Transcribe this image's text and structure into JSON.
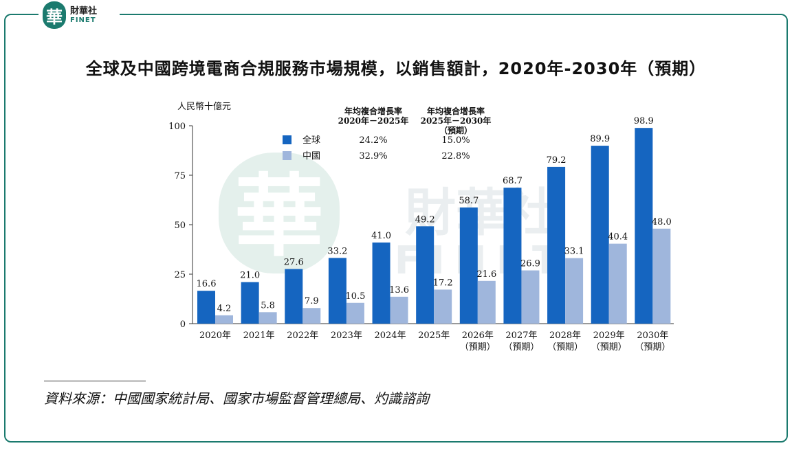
{
  "brand": {
    "logo_char": "華",
    "name_cn": "財華社",
    "name_en": "FINET"
  },
  "watermark": {
    "char": "華",
    "cn": "財華社",
    "en": "FINET"
  },
  "title": "全球及中國跨境電商合規服務市場規模，以銷售額計，2020年-2030年（預期）",
  "source": "資料來源：中國國家統計局、國家市場監督管理總局、灼識諮詢",
  "chart_data": {
    "type": "bar",
    "ylabel": "人民幣十億元",
    "ylim": [
      0,
      100
    ],
    "yticks": [
      0,
      25,
      50,
      75,
      100
    ],
    "categories": [
      [
        "2020年"
      ],
      [
        "2021年"
      ],
      [
        "2022年"
      ],
      [
        "2023年"
      ],
      [
        "2024年"
      ],
      [
        "2025年"
      ],
      [
        "2026年",
        "（預期）"
      ],
      [
        "2027年",
        "（預期）"
      ],
      [
        "2028年",
        "（預期）"
      ],
      [
        "2029年",
        "（預期）"
      ],
      [
        "2030年",
        "（預期）"
      ]
    ],
    "series": [
      {
        "name": "全球",
        "color": "#1565c0",
        "values": [
          16.6,
          21.0,
          27.6,
          33.2,
          41.0,
          49.2,
          58.7,
          68.7,
          79.2,
          89.9,
          98.9
        ]
      },
      {
        "name": "中國",
        "color": "#9fb6dc",
        "values": [
          4.2,
          5.8,
          7.9,
          10.5,
          13.6,
          17.2,
          21.6,
          26.9,
          33.1,
          40.4,
          48.0
        ]
      }
    ],
    "cagr_table": {
      "headers": [
        [
          "年均複合增長率",
          "2020年－2025年"
        ],
        [
          "年均複合增長率",
          "2025年－2030年",
          "（預期）"
        ]
      ],
      "rows": [
        {
          "series": "全球",
          "values": [
            "24.2%",
            "15.0%"
          ]
        },
        {
          "series": "中國",
          "values": [
            "32.9%",
            "22.8%"
          ]
        }
      ]
    }
  }
}
